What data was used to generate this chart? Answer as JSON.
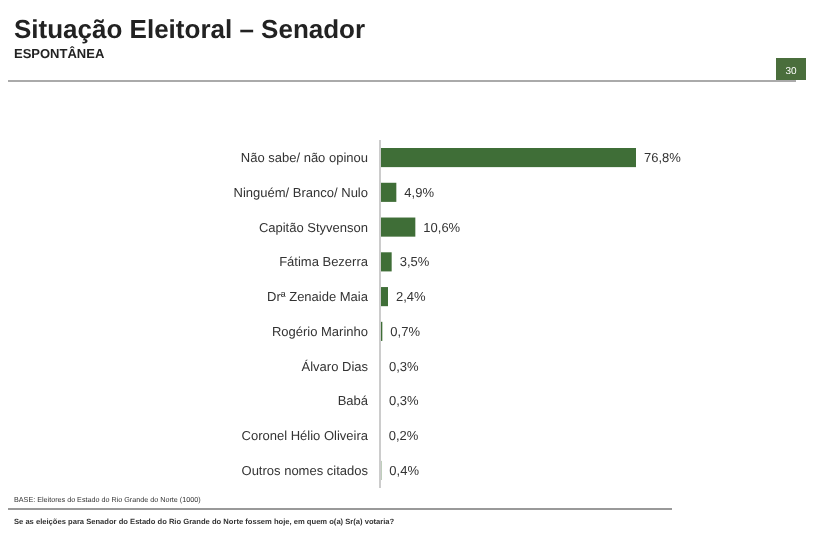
{
  "chart_data": {
    "type": "bar",
    "orientation": "horizontal",
    "title": "Situação Eleitoral – Senador",
    "subtitle": "ESPONTÂNEA",
    "categories": [
      "Não sabe/ não opinou",
      "Ninguém/ Branco/ Nulo",
      "Capitão Styvenson",
      "Fátima Bezerra",
      "Drª Zenaide Maia",
      "Rogério Marinho",
      "Álvaro Dias",
      "Babá",
      "Coronel Hélio Oliveira",
      "Outros nomes citados"
    ],
    "values": [
      76.8,
      4.9,
      10.6,
      3.5,
      2.4,
      0.7,
      0.3,
      0.3,
      0.2,
      0.4
    ],
    "value_labels": [
      "76,8%",
      "4,9%",
      "10,6%",
      "3,5%",
      "2,4%",
      "0,7%",
      "0,3%",
      "0,3%",
      "0,2%",
      "0,4%"
    ],
    "color": "#3f6e37",
    "annotations": [
      "BASE: Eleitores do Estado do Rio Grande do Norte (1000)",
      "Se as eleições para Senador do Estado do Rio Grande do Norte fossem hoje, em quem o(a) Sr(a) votaria?",
      "30"
    ]
  }
}
